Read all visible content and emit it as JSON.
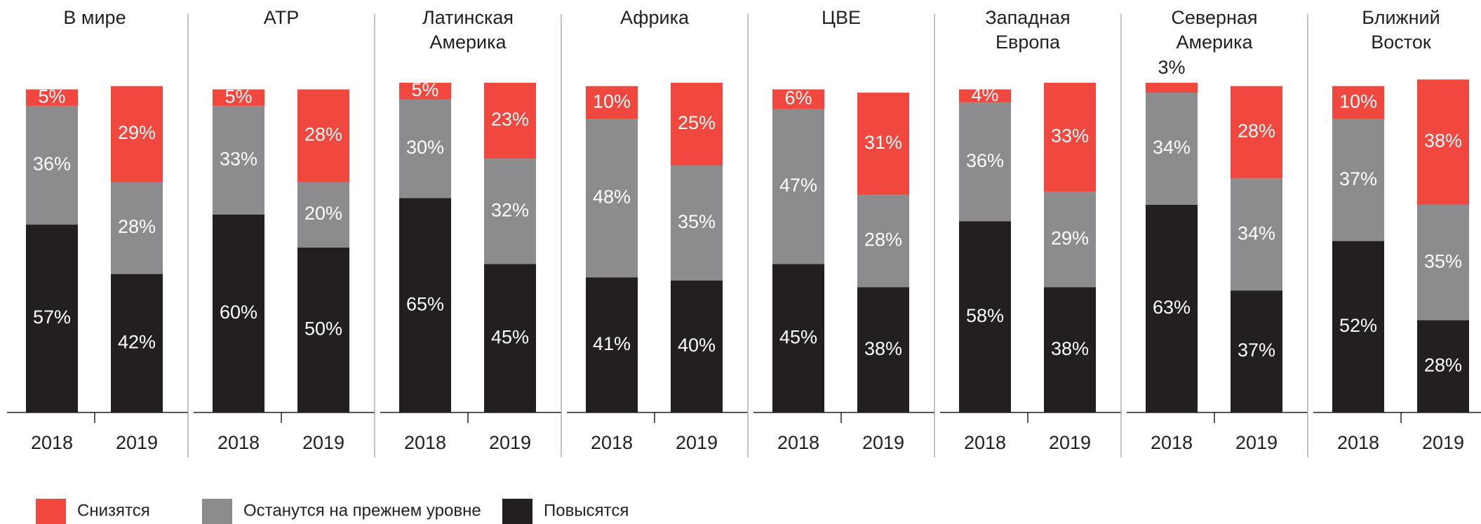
{
  "chart_data": {
    "type": "bar",
    "stacked": true,
    "ylim": [
      0,
      100
    ],
    "series": [
      {
        "name": "Снизятся",
        "color": "#f0483e"
      },
      {
        "name": "Останутся на прежнем уровне",
        "color": "#8c8c8e"
      },
      {
        "name": "Повысятся",
        "color": "#231f20"
      }
    ],
    "panels": [
      {
        "title": [
          "В мире"
        ],
        "categories": [
          "2018",
          "2019"
        ],
        "values": [
          [
            5,
            29
          ],
          [
            36,
            28
          ],
          [
            57,
            42
          ]
        ],
        "value_labels": [
          [
            "5%",
            "29%"
          ],
          [
            "36%",
            "28%"
          ],
          [
            "57%",
            "42%"
          ]
        ]
      },
      {
        "title": [
          "АТР"
        ],
        "categories": [
          "2018",
          "2019"
        ],
        "values": [
          [
            5,
            28
          ],
          [
            33,
            20
          ],
          [
            60,
            50
          ]
        ],
        "value_labels": [
          [
            "5%",
            "28%"
          ],
          [
            "33%",
            "20%"
          ],
          [
            "60%",
            "50%"
          ]
        ]
      },
      {
        "title": [
          "Латинская",
          "Америка"
        ],
        "categories": [
          "2018",
          "2019"
        ],
        "values": [
          [
            5,
            23
          ],
          [
            30,
            32
          ],
          [
            65,
            45
          ]
        ],
        "value_labels": [
          [
            "5%",
            "23%"
          ],
          [
            "30%",
            "32%"
          ],
          [
            "65%",
            "45%"
          ]
        ]
      },
      {
        "title": [
          "Африка"
        ],
        "categories": [
          "2018",
          "2019"
        ],
        "values": [
          [
            10,
            25
          ],
          [
            48,
            35
          ],
          [
            41,
            40
          ]
        ],
        "value_labels": [
          [
            "10%",
            "25%"
          ],
          [
            "48%",
            "35%"
          ],
          [
            "41%",
            "40%"
          ]
        ]
      },
      {
        "title": [
          "ЦВЕ"
        ],
        "categories": [
          "2018",
          "2019"
        ],
        "values": [
          [
            6,
            31
          ],
          [
            47,
            28
          ],
          [
            45,
            38
          ]
        ],
        "value_labels": [
          [
            "6%",
            "31%"
          ],
          [
            "47%",
            "28%"
          ],
          [
            "45%",
            "38%"
          ]
        ]
      },
      {
        "title": [
          "Западная",
          "Европа"
        ],
        "categories": [
          "2018",
          "2019"
        ],
        "values": [
          [
            4,
            33
          ],
          [
            36,
            29
          ],
          [
            58,
            38
          ]
        ],
        "value_labels": [
          [
            "4%",
            "33%"
          ],
          [
            "36%",
            "29%"
          ],
          [
            "58%",
            "38%"
          ]
        ]
      },
      {
        "title": [
          "Северная",
          "Америка"
        ],
        "categories": [
          "2018",
          "2019"
        ],
        "values": [
          [
            3,
            28
          ],
          [
            34,
            34
          ],
          [
            63,
            37
          ]
        ],
        "value_labels": [
          [
            "3%",
            "28%"
          ],
          [
            "34%",
            "34%"
          ],
          [
            "63%",
            "37%"
          ]
        ]
      },
      {
        "title": [
          "Ближний",
          "Восток"
        ],
        "categories": [
          "2018",
          "2019"
        ],
        "values": [
          [
            10,
            38
          ],
          [
            37,
            35
          ],
          [
            52,
            28
          ]
        ],
        "value_labels": [
          [
            "10%",
            "38%"
          ],
          [
            "37%",
            "35%"
          ],
          [
            "52%",
            "28%"
          ]
        ]
      }
    ]
  }
}
